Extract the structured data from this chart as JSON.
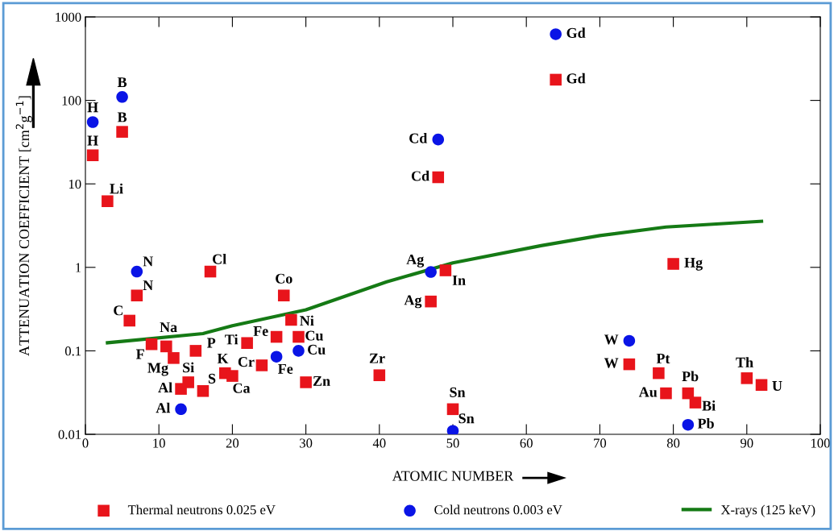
{
  "chart_data": {
    "type": "scatter",
    "xlabel": "ATOMIC NUMBER",
    "ylabel": "ATTENUATION COEFFICIENT [cm$^{2}$g$^{−1}$]",
    "log": "y",
    "xlim": [
      0,
      100
    ],
    "xticks": [
      0,
      10,
      20,
      30,
      40,
      50,
      60,
      70,
      80,
      90,
      100
    ],
    "ylim": [
      0.01,
      1000
    ],
    "yticks": [
      0.01,
      0.1,
      1,
      10,
      100,
      1000
    ],
    "grid": false,
    "legend": "bottom",
    "series": [
      {
        "name": "Thermal neutrons 0.025 eV",
        "marker": "square",
        "color": "#e8141b",
        "x": [
          1,
          5,
          3,
          7,
          6,
          17,
          9,
          11,
          12,
          15,
          13,
          14,
          16,
          19,
          20,
          22,
          24,
          26,
          27,
          28,
          29,
          30,
          40,
          47,
          48,
          49,
          50,
          64,
          80,
          74,
          78,
          79,
          82,
          83,
          90,
          92
        ],
        "values": [
          22,
          42,
          6.2,
          0.46,
          0.23,
          0.89,
          0.12,
          0.113,
          0.082,
          0.1,
          0.035,
          0.042,
          0.033,
          0.054,
          0.05,
          0.124,
          0.067,
          0.147,
          0.46,
          0.235,
          0.147,
          0.042,
          0.051,
          0.39,
          12,
          0.92,
          0.02,
          177,
          1.1,
          0.069,
          0.054,
          0.031,
          0.031,
          0.024,
          0.047,
          0.039
        ],
        "value_labels": [
          "H",
          "B",
          "Li",
          "N",
          "C",
          "Cl",
          "F",
          "Na",
          "Mg",
          "P",
          "Al",
          "Si",
          "S",
          "K",
          "Ca",
          "Ti",
          "Cr",
          "Fe",
          "Co",
          "Ni",
          "Cu",
          "Zn",
          "Zr",
          "Ag",
          "Cd",
          "In",
          "Sn",
          "Gd",
          "Hg",
          "W",
          "Pt",
          "Au",
          "Pb",
          "Bi",
          "Th",
          "U"
        ]
      },
      {
        "name": "Cold neutrons 0.003 eV",
        "marker": "circle",
        "color": "#0a14e6",
        "x": [
          1,
          5,
          7,
          13,
          26,
          29,
          47,
          48,
          50,
          64,
          74,
          82
        ],
        "values": [
          55,
          110,
          0.89,
          0.02,
          0.085,
          0.1,
          0.88,
          34,
          0.011,
          621,
          0.132,
          0.013
        ],
        "value_labels": [
          "H",
          "B",
          "N",
          "Al",
          "Fe",
          "Cu",
          "Ag",
          "Cd",
          "Sn",
          "Gd",
          "W",
          "Pb"
        ]
      },
      {
        "name": "X-rays (125 keV)",
        "type": "line",
        "line_style": "solid",
        "color": "#157a15",
        "x": [
          3,
          16,
          20,
          30,
          41,
          50,
          62,
          70,
          79,
          92
        ],
        "values": [
          0.125,
          0.161,
          0.2,
          0.31,
          0.67,
          1.13,
          1.82,
          2.4,
          3.04,
          3.56
        ]
      }
    ]
  }
}
